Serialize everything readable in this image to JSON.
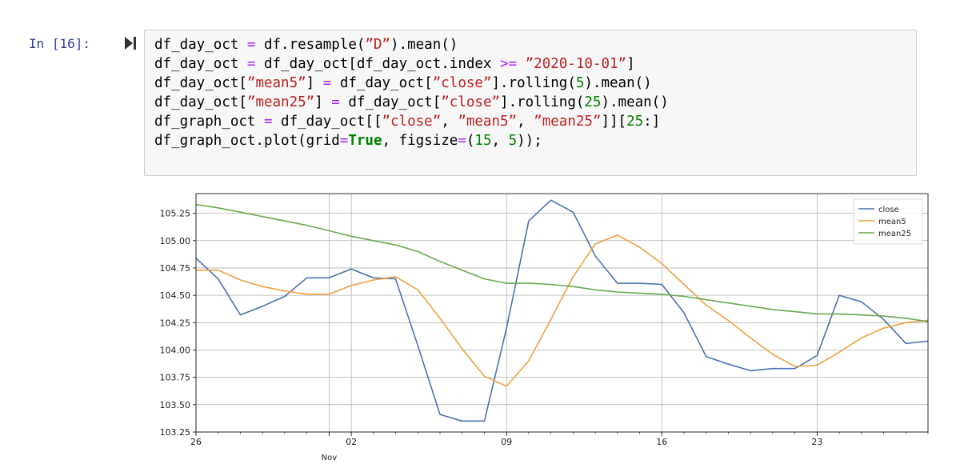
{
  "cell": {
    "prompt": "In [16]:",
    "code_lines": [
      [
        {
          "t": "df_day_oct ",
          "c": "#000"
        },
        {
          "t": "=",
          "c": "#aa22ff"
        },
        {
          "t": " df.resample(",
          "c": "#000"
        },
        {
          "t": "”D”",
          "c": "#ba2121"
        },
        {
          "t": ").mean()",
          "c": "#000"
        }
      ],
      [
        {
          "t": "df_day_oct ",
          "c": "#000"
        },
        {
          "t": "=",
          "c": "#aa22ff"
        },
        {
          "t": " df_day_oct[df_day_oct.index ",
          "c": "#000"
        },
        {
          "t": ">=",
          "c": "#aa22ff"
        },
        {
          "t": " ",
          "c": "#000"
        },
        {
          "t": "”2020-10-01”",
          "c": "#ba2121"
        },
        {
          "t": "]",
          "c": "#000"
        }
      ],
      [
        {
          "t": "df_day_oct[",
          "c": "#000"
        },
        {
          "t": "”mean5”",
          "c": "#ba2121"
        },
        {
          "t": "] ",
          "c": "#000"
        },
        {
          "t": "=",
          "c": "#aa22ff"
        },
        {
          "t": " df_day_oct[",
          "c": "#000"
        },
        {
          "t": "”close”",
          "c": "#ba2121"
        },
        {
          "t": "].rolling(",
          "c": "#000"
        },
        {
          "t": "5",
          "c": "#008000"
        },
        {
          "t": ").mean()",
          "c": "#000"
        }
      ],
      [
        {
          "t": "df_day_oct[",
          "c": "#000"
        },
        {
          "t": "”mean25”",
          "c": "#ba2121"
        },
        {
          "t": "] ",
          "c": "#000"
        },
        {
          "t": "=",
          "c": "#aa22ff"
        },
        {
          "t": " df_day_oct[",
          "c": "#000"
        },
        {
          "t": "”close”",
          "c": "#ba2121"
        },
        {
          "t": "].rolling(",
          "c": "#000"
        },
        {
          "t": "25",
          "c": "#008000"
        },
        {
          "t": ").mean()",
          "c": "#000"
        }
      ],
      [
        {
          "t": "df_graph_oct ",
          "c": "#000"
        },
        {
          "t": "=",
          "c": "#aa22ff"
        },
        {
          "t": " df_day_oct[[",
          "c": "#000"
        },
        {
          "t": "”close”",
          "c": "#ba2121"
        },
        {
          "t": ", ",
          "c": "#000"
        },
        {
          "t": "”mean5”",
          "c": "#ba2121"
        },
        {
          "t": ", ",
          "c": "#000"
        },
        {
          "t": "”mean25”",
          "c": "#ba2121"
        },
        {
          "t": "]][",
          "c": "#000"
        },
        {
          "t": "25",
          "c": "#008000"
        },
        {
          "t": ":]",
          "c": "#000"
        }
      ],
      [
        {
          "t": "df_graph_oct.plot(grid",
          "c": "#000"
        },
        {
          "t": "=",
          "c": "#aa22ff"
        },
        {
          "t": "True",
          "c": "#008000",
          "b": true
        },
        {
          "t": ", figsize",
          "c": "#000"
        },
        {
          "t": "=",
          "c": "#aa22ff"
        },
        {
          "t": "(",
          "c": "#000"
        },
        {
          "t": "15",
          "c": "#008000"
        },
        {
          "t": ", ",
          "c": "#000"
        },
        {
          "t": "5",
          "c": "#008000"
        },
        {
          "t": "));",
          "c": "#000"
        }
      ]
    ]
  },
  "chart_data": {
    "type": "line",
    "x_start_date": "2020-10-26",
    "x_end_date": "2020-11-28",
    "x": [
      "2020-10-26",
      "2020-10-27",
      "2020-10-28",
      "2020-10-29",
      "2020-10-30",
      "2020-10-31",
      "2020-11-01",
      "2020-11-02",
      "2020-11-03",
      "2020-11-04",
      "2020-11-05",
      "2020-11-06",
      "2020-11-07",
      "2020-11-08",
      "2020-11-09",
      "2020-11-10",
      "2020-11-11",
      "2020-11-12",
      "2020-11-13",
      "2020-11-14",
      "2020-11-15",
      "2020-11-16",
      "2020-11-17",
      "2020-11-18",
      "2020-11-19",
      "2020-11-20",
      "2020-11-21",
      "2020-11-22",
      "2020-11-23",
      "2020-11-24",
      "2020-11-25",
      "2020-11-26",
      "2020-11-27",
      "2020-11-28"
    ],
    "series": [
      {
        "name": "close",
        "color": "#4c72b0",
        "values": [
          104.84,
          104.65,
          104.32,
          104.4,
          104.49,
          104.66,
          104.66,
          104.74,
          104.66,
          104.65,
          104.04,
          103.41,
          103.35,
          103.35,
          104.2,
          105.18,
          105.37,
          105.26,
          104.86,
          104.61,
          104.61,
          104.6,
          104.34,
          103.94,
          103.87,
          103.81,
          103.83,
          103.83,
          103.95,
          104.5,
          104.44,
          104.28,
          104.06,
          104.08
        ]
      },
      {
        "name": "mean5",
        "color": "#f0a040",
        "values": [
          104.73,
          104.73,
          104.64,
          104.58,
          104.54,
          104.51,
          104.51,
          104.59,
          104.64,
          104.67,
          104.55,
          104.29,
          104.01,
          103.76,
          103.67,
          103.9,
          104.28,
          104.67,
          104.97,
          105.05,
          104.94,
          104.79,
          104.6,
          104.41,
          104.27,
          104.11,
          103.96,
          103.85,
          103.86,
          103.98,
          104.11,
          104.2,
          104.25,
          104.27
        ]
      },
      {
        "name": "mean25",
        "color": "#6aa84f",
        "values": [
          105.33,
          105.3,
          105.26,
          105.22,
          105.18,
          105.14,
          105.09,
          105.04,
          105.0,
          104.96,
          104.9,
          104.81,
          104.73,
          104.65,
          104.61,
          104.61,
          104.6,
          104.58,
          104.55,
          104.53,
          104.52,
          104.51,
          104.49,
          104.46,
          104.43,
          104.4,
          104.37,
          104.35,
          104.33,
          104.33,
          104.32,
          104.31,
          104.29,
          104.26
        ]
      }
    ],
    "ylim": [
      103.25,
      105.43
    ],
    "y_ticks": [
      "103.25",
      "103.50",
      "103.75",
      "104.00",
      "104.25",
      "104.50",
      "104.75",
      "105.00",
      "105.25"
    ],
    "x_ticks": [
      {
        "date": "2020-10-26",
        "label": "26"
      },
      {
        "date": "2020-11-02",
        "label": "02"
      },
      {
        "date": "2020-11-09",
        "label": "09"
      },
      {
        "date": "2020-11-16",
        "label": "16"
      },
      {
        "date": "2020-11-23",
        "label": "23"
      }
    ],
    "x_minor_label": "Nov",
    "grid": true,
    "legend_position": "top-right"
  }
}
